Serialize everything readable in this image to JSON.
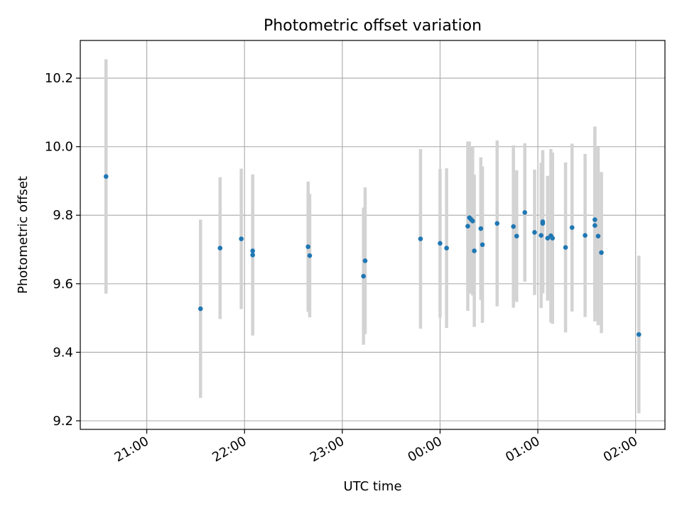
{
  "chart_data": {
    "type": "scatter",
    "title": "Photometric offset variation",
    "xlabel": "UTC time",
    "ylabel": "Photometric offset",
    "xlim_hours": [
      20.32,
      26.3
    ],
    "ylim": [
      9.175,
      10.31
    ],
    "x_ticks": [
      {
        "hour": 21,
        "label": "21:00"
      },
      {
        "hour": 22,
        "label": "22:00"
      },
      {
        "hour": 23,
        "label": "23:00"
      },
      {
        "hour": 24,
        "label": "00:00"
      },
      {
        "hour": 25,
        "label": "01:00"
      },
      {
        "hour": 26,
        "label": "02:00"
      }
    ],
    "y_ticks": [
      {
        "value": 9.2,
        "label": "9.2"
      },
      {
        "value": 9.4,
        "label": "9.4"
      },
      {
        "value": 9.6,
        "label": "9.6"
      },
      {
        "value": 9.8,
        "label": "9.8"
      },
      {
        "value": 10.0,
        "label": "10.0"
      },
      {
        "value": 10.2,
        "label": "10.2"
      }
    ],
    "grid": true,
    "point_color": "#1f77b4",
    "errorbar_color": "#d3d3d3",
    "points": [
      {
        "t": "20:35",
        "y": 9.913,
        "err": 0.342
      },
      {
        "t": "21:33",
        "y": 9.527,
        "err": 0.26
      },
      {
        "t": "21:45",
        "y": 9.704,
        "err": 0.207
      },
      {
        "t": "21:58",
        "y": 9.731,
        "err": 0.205
      },
      {
        "t": "22:05",
        "y": 9.684,
        "err": 0.235
      },
      {
        "t": "22:05",
        "y": 9.696,
        "err": 0.205
      },
      {
        "t": "22:39",
        "y": 9.708,
        "err": 0.19
      },
      {
        "t": "22:40",
        "y": 9.682,
        "err": 0.18
      },
      {
        "t": "23:13",
        "y": 9.622,
        "err": 0.2
      },
      {
        "t": "23:14",
        "y": 9.667,
        "err": 0.214
      },
      {
        "t": "23:48",
        "y": 9.731,
        "err": 0.262
      },
      {
        "t": "00:00",
        "y": 9.718,
        "err": 0.217
      },
      {
        "t": "00:04",
        "y": 9.704,
        "err": 0.233
      },
      {
        "t": "00:17",
        "y": 9.768,
        "err": 0.247
      },
      {
        "t": "00:18",
        "y": 9.793,
        "err": 0.222
      },
      {
        "t": "00:19",
        "y": 9.788,
        "err": 0.212
      },
      {
        "t": "00:20",
        "y": 9.783,
        "err": 0.217
      },
      {
        "t": "00:21",
        "y": 9.696,
        "err": 0.222
      },
      {
        "t": "00:25",
        "y": 9.761,
        "err": 0.208
      },
      {
        "t": "00:26",
        "y": 9.714,
        "err": 0.228
      },
      {
        "t": "00:35",
        "y": 9.776,
        "err": 0.242
      },
      {
        "t": "00:45",
        "y": 9.767,
        "err": 0.237
      },
      {
        "t": "00:47",
        "y": 9.739,
        "err": 0.192
      },
      {
        "t": "00:52",
        "y": 9.808,
        "err": 0.202
      },
      {
        "t": "00:58",
        "y": 9.75,
        "err": 0.183
      },
      {
        "t": "01:02",
        "y": 9.741,
        "err": 0.212
      },
      {
        "t": "01:03",
        "y": 9.781,
        "err": 0.209
      },
      {
        "t": "01:03",
        "y": 9.776,
        "err": 0.201
      },
      {
        "t": "01:06",
        "y": 9.733,
        "err": 0.182
      },
      {
        "t": "01:08",
        "y": 9.74,
        "err": 0.253
      },
      {
        "t": "01:09",
        "y": 9.733,
        "err": 0.25
      },
      {
        "t": "01:17",
        "y": 9.706,
        "err": 0.248
      },
      {
        "t": "01:21",
        "y": 9.764,
        "err": 0.245
      },
      {
        "t": "01:29",
        "y": 9.741,
        "err": 0.238
      },
      {
        "t": "01:35",
        "y": 9.787,
        "err": 0.272
      },
      {
        "t": "01:35",
        "y": 9.77,
        "err": 0.28
      },
      {
        "t": "01:37",
        "y": 9.739,
        "err": 0.26
      },
      {
        "t": "01:39",
        "y": 9.691,
        "err": 0.235
      },
      {
        "t": "02:02",
        "y": 9.452,
        "err": 0.23
      }
    ]
  }
}
